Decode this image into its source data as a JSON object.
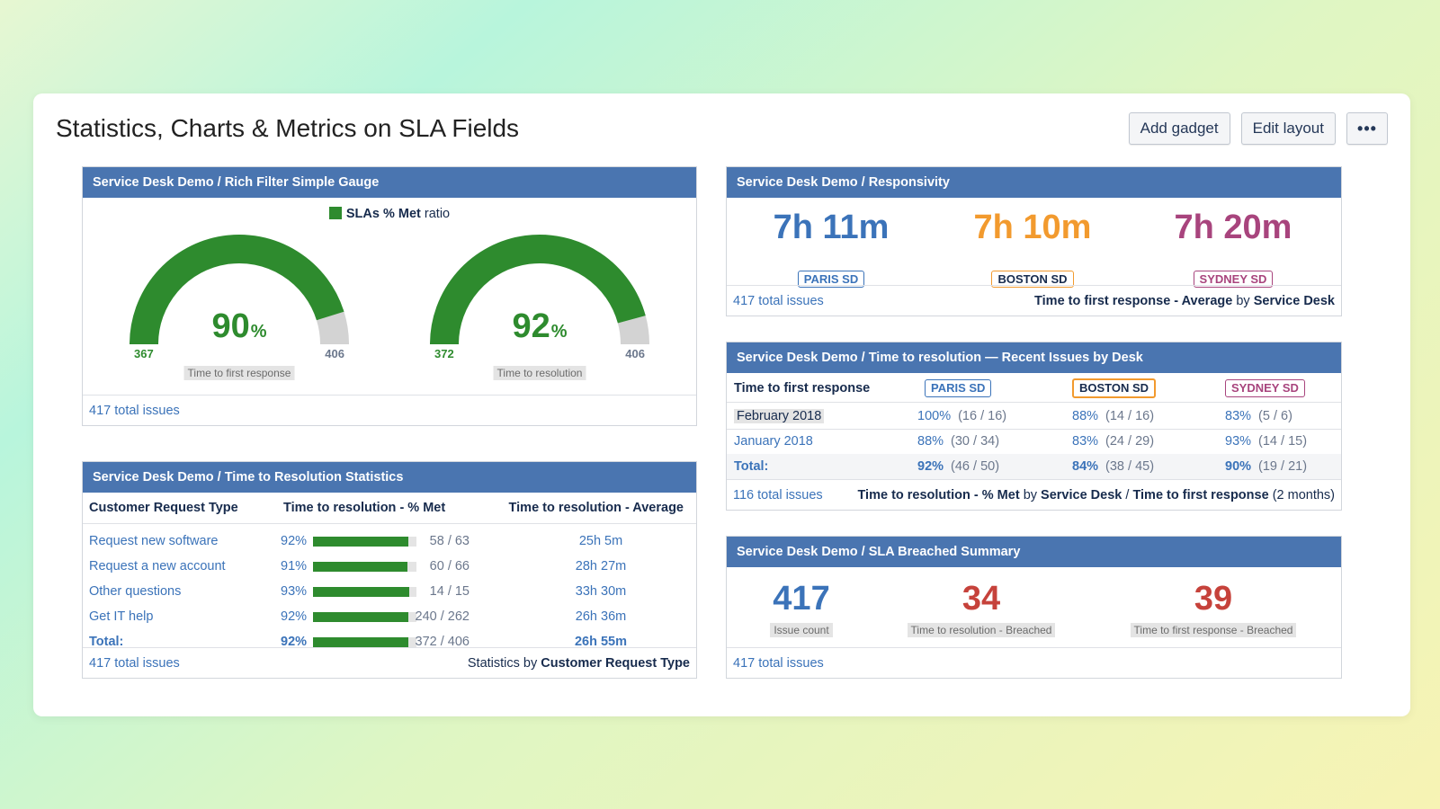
{
  "page": {
    "title": "Statistics, Charts & Metrics on SLA Fields",
    "actions": {
      "add_gadget": "Add gadget",
      "edit_layout": "Edit layout",
      "more": "•••"
    }
  },
  "gauge_gadget": {
    "title": "Service Desk Demo / Rich Filter Simple Gauge",
    "legend_bold": "SLAs % Met",
    "legend_rest": "ratio",
    "colors": {
      "met": "#2e8b2e",
      "remaining": "#d3d3d3"
    },
    "gauges": [
      {
        "caption": "Time to first response",
        "percent": "90",
        "pct_symbol": "%",
        "met": "367",
        "total": "406",
        "fraction": 0.904
      },
      {
        "caption": "Time to resolution",
        "percent": "92",
        "pct_symbol": "%",
        "met": "372",
        "total": "406",
        "fraction": 0.916
      }
    ],
    "footer": "417 total issues"
  },
  "responsivity": {
    "title": "Service Desk Demo / Responsivity",
    "desks": [
      {
        "value": "7h 11m",
        "label": "PARIS SD",
        "color": "#3b73b9"
      },
      {
        "value": "7h 10m",
        "label": "BOSTON SD",
        "color": "#f29a2e"
      },
      {
        "value": "7h 20m",
        "label": "SYDNEY SD",
        "color": "#a8447d"
      }
    ],
    "footer_left": "417 total issues",
    "footer_right": {
      "a": "Time to first response - Average",
      "b": "by",
      "c": "Service Desk"
    }
  },
  "recent": {
    "title": "Service Desk Demo / Time to resolution — Recent Issues by Desk",
    "header_label": "Time to first response",
    "desks": [
      {
        "label": "PARIS SD",
        "color": "#3b73b9"
      },
      {
        "label": "BOSTON SD",
        "color": "#f29a2e"
      },
      {
        "label": "SYDNEY SD",
        "color": "#a8447d"
      }
    ],
    "rows": [
      {
        "label": "February 2018",
        "cells": [
          {
            "pct": "100%",
            "frac": "(16 / 16)"
          },
          {
            "pct": "88%",
            "frac": "(14 / 16)"
          },
          {
            "pct": "83%",
            "frac": "(5 / 6)"
          }
        ]
      },
      {
        "label": "January 2018",
        "cells": [
          {
            "pct": "88%",
            "frac": "(30 / 34)"
          },
          {
            "pct": "83%",
            "frac": "(24 / 29)"
          },
          {
            "pct": "93%",
            "frac": "(14 / 15)"
          }
        ]
      }
    ],
    "total": {
      "label": "Total:",
      "cells": [
        {
          "pct": "92%",
          "frac": "(46 / 50)"
        },
        {
          "pct": "84%",
          "frac": "(38 / 45)"
        },
        {
          "pct": "90%",
          "frac": "(19 / 21)"
        }
      ]
    },
    "footer_left": "116 total issues",
    "footer_right": {
      "a": "Time to resolution - % Met",
      "b": "by",
      "c": "Service Desk",
      "d": "/",
      "e": "Time to first response",
      "f": "(2 months)"
    }
  },
  "statistics": {
    "title": "Service Desk Demo / Time to Resolution Statistics",
    "headers": {
      "type": "Customer Request Type",
      "met": "Time to resolution - % Met",
      "avg": "Time to resolution - Average"
    },
    "rows": [
      {
        "type": "Request new software",
        "pct": "92%",
        "fraction": 0.92,
        "count": "58 / 63",
        "avg": "25h 5m"
      },
      {
        "type": "Request a new account",
        "pct": "91%",
        "fraction": 0.91,
        "count": "60 / 66",
        "avg": "28h 27m"
      },
      {
        "type": "Other questions",
        "pct": "93%",
        "fraction": 0.93,
        "count": "14 / 15",
        "avg": "33h 30m"
      },
      {
        "type": "Get IT help",
        "pct": "92%",
        "fraction": 0.92,
        "count": "240 / 262",
        "avg": "26h 36m"
      }
    ],
    "total": {
      "type": "Total:",
      "pct": "92%",
      "fraction": 0.92,
      "count": "372 / 406",
      "avg": "26h 55m"
    },
    "footer_left": "417 total issues",
    "footer_right": {
      "a": "Statistics by",
      "b": "Customer Request Type"
    }
  },
  "breached": {
    "title": "Service Desk Demo / SLA Breached Summary",
    "items": [
      {
        "value": "417",
        "caption": "Issue count",
        "color": "#3b73b9"
      },
      {
        "value": "34",
        "caption": "Time to resolution - Breached",
        "color": "#c6423b"
      },
      {
        "value": "39",
        "caption": "Time to first response - Breached",
        "color": "#c6423b"
      }
    ],
    "footer": "417 total issues"
  }
}
